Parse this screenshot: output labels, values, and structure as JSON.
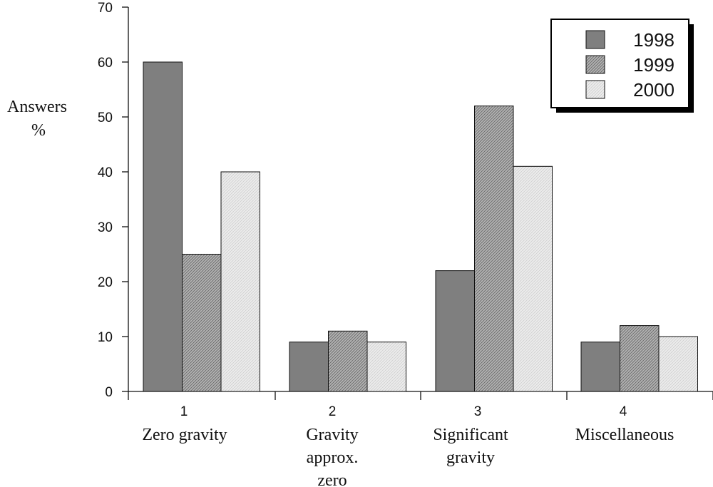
{
  "chart_data": {
    "type": "bar",
    "title": "",
    "ylabel": [
      "Answers",
      "%"
    ],
    "xlabel": "",
    "ylim": [
      0,
      70
    ],
    "yticks": [
      0,
      10,
      20,
      30,
      40,
      50,
      60,
      70
    ],
    "grid": false,
    "legend_position": "top-right",
    "categories": [
      "1",
      "2",
      "3",
      "4"
    ],
    "category_labels": [
      [
        "Zero gravity"
      ],
      [
        "Gravity",
        "approx.",
        "zero"
      ],
      [
        "Significant",
        "gravity"
      ],
      [
        "Miscellaneous"
      ]
    ],
    "series": [
      {
        "name": "1998",
        "values": [
          60,
          9,
          22,
          9
        ],
        "color": "#7f7f7f"
      },
      {
        "name": "1999",
        "values": [
          25,
          11,
          52,
          12
        ],
        "color": "#a8a8a8"
      },
      {
        "name": "2000",
        "values": [
          40,
          9,
          41,
          10
        ],
        "color": "#e4e4e4"
      }
    ]
  }
}
